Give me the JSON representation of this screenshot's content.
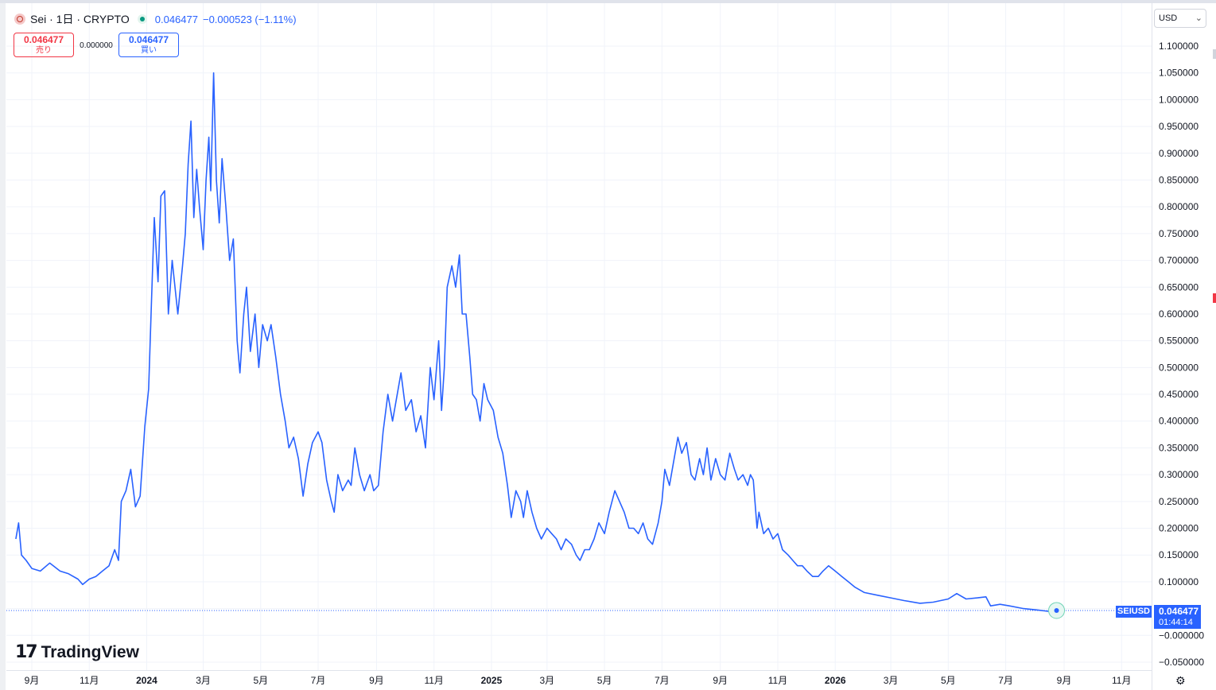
{
  "header": {
    "symbol_title": "Sei · 1日 · CRYPTO",
    "last_price": "0.046477",
    "change": "−0.000523 (−1.11%)"
  },
  "trade": {
    "sell_price": "0.046477",
    "sell_label": "売り",
    "spread": "0.000000",
    "buy_price": "0.046477",
    "buy_label": "買い"
  },
  "currency": {
    "selected": "USD"
  },
  "branding": {
    "logo_text": "TradingView"
  },
  "price_tag": {
    "symbol": "SEIUSD",
    "price": "0.046477",
    "countdown": "01:44:14"
  },
  "colors": {
    "line": "#2962ff",
    "grid": "#f0f3fa",
    "sell": "#f23645",
    "buy": "#2962ff"
  },
  "chart_data": {
    "type": "line",
    "series": [
      {
        "points": [
          [
            "2023-08-15",
            0.18
          ],
          [
            "2023-08-18",
            0.21
          ],
          [
            "2023-08-21",
            0.15
          ],
          [
            "2023-08-26",
            0.14
          ],
          [
            "2023-09-01",
            0.125
          ],
          [
            "2023-09-10",
            0.12
          ],
          [
            "2023-09-20",
            0.135
          ],
          [
            "2023-10-01",
            0.12
          ],
          [
            "2023-10-10",
            0.115
          ],
          [
            "2023-10-20",
            0.105
          ],
          [
            "2023-10-25",
            0.095
          ],
          [
            "2023-11-01",
            0.105
          ],
          [
            "2023-11-08",
            0.11
          ],
          [
            "2023-11-15",
            0.12
          ],
          [
            "2023-11-22",
            0.13
          ],
          [
            "2023-11-28",
            0.16
          ],
          [
            "2023-12-02",
            0.14
          ],
          [
            "2023-12-05",
            0.25
          ],
          [
            "2023-12-10",
            0.27
          ],
          [
            "2023-12-15",
            0.31
          ],
          [
            "2023-12-20",
            0.24
          ],
          [
            "2023-12-25",
            0.26
          ],
          [
            "2023-12-30",
            0.39
          ],
          [
            "2024-01-03",
            0.46
          ],
          [
            "2024-01-06",
            0.62
          ],
          [
            "2024-01-09",
            0.78
          ],
          [
            "2024-01-13",
            0.66
          ],
          [
            "2024-01-16",
            0.82
          ],
          [
            "2024-01-20",
            0.83
          ],
          [
            "2024-01-24",
            0.6
          ],
          [
            "2024-01-28",
            0.7
          ],
          [
            "2024-02-03",
            0.6
          ],
          [
            "2024-02-08",
            0.69
          ],
          [
            "2024-02-11",
            0.75
          ],
          [
            "2024-02-14",
            0.88
          ],
          [
            "2024-02-17",
            0.96
          ],
          [
            "2024-02-20",
            0.78
          ],
          [
            "2024-02-23",
            0.87
          ],
          [
            "2024-02-26",
            0.8
          ],
          [
            "2024-03-01",
            0.72
          ],
          [
            "2024-03-04",
            0.85
          ],
          [
            "2024-03-07",
            0.93
          ],
          [
            "2024-03-09",
            0.83
          ],
          [
            "2024-03-12",
            1.05
          ],
          [
            "2024-03-15",
            0.85
          ],
          [
            "2024-03-18",
            0.77
          ],
          [
            "2024-03-21",
            0.89
          ],
          [
            "2024-03-25",
            0.8
          ],
          [
            "2024-03-29",
            0.7
          ],
          [
            "2024-04-02",
            0.74
          ],
          [
            "2024-04-06",
            0.55
          ],
          [
            "2024-04-09",
            0.49
          ],
          [
            "2024-04-13",
            0.6
          ],
          [
            "2024-04-16",
            0.65
          ],
          [
            "2024-04-20",
            0.53
          ],
          [
            "2024-04-25",
            0.6
          ],
          [
            "2024-04-29",
            0.5
          ],
          [
            "2024-05-03",
            0.58
          ],
          [
            "2024-05-08",
            0.55
          ],
          [
            "2024-05-12",
            0.58
          ],
          [
            "2024-05-17",
            0.52
          ],
          [
            "2024-05-22",
            0.45
          ],
          [
            "2024-05-27",
            0.4
          ],
          [
            "2024-05-31",
            0.35
          ],
          [
            "2024-06-05",
            0.37
          ],
          [
            "2024-06-10",
            0.33
          ],
          [
            "2024-06-15",
            0.26
          ],
          [
            "2024-06-20",
            0.32
          ],
          [
            "2024-06-25",
            0.36
          ],
          [
            "2024-07-01",
            0.38
          ],
          [
            "2024-07-05",
            0.36
          ],
          [
            "2024-07-10",
            0.29
          ],
          [
            "2024-07-15",
            0.25
          ],
          [
            "2024-07-18",
            0.23
          ],
          [
            "2024-07-22",
            0.3
          ],
          [
            "2024-07-27",
            0.27
          ],
          [
            "2024-08-02",
            0.29
          ],
          [
            "2024-08-05",
            0.28
          ],
          [
            "2024-08-09",
            0.35
          ],
          [
            "2024-08-14",
            0.3
          ],
          [
            "2024-08-19",
            0.27
          ],
          [
            "2024-08-25",
            0.3
          ],
          [
            "2024-08-29",
            0.27
          ],
          [
            "2024-09-03",
            0.28
          ],
          [
            "2024-09-08",
            0.38
          ],
          [
            "2024-09-13",
            0.45
          ],
          [
            "2024-09-18",
            0.4
          ],
          [
            "2024-09-22",
            0.44
          ],
          [
            "2024-09-27",
            0.49
          ],
          [
            "2024-10-02",
            0.42
          ],
          [
            "2024-10-08",
            0.44
          ],
          [
            "2024-10-13",
            0.38
          ],
          [
            "2024-10-18",
            0.41
          ],
          [
            "2024-10-23",
            0.35
          ],
          [
            "2024-10-28",
            0.5
          ],
          [
            "2024-11-01",
            0.44
          ],
          [
            "2024-11-06",
            0.55
          ],
          [
            "2024-11-09",
            0.42
          ],
          [
            "2024-11-12",
            0.5
          ],
          [
            "2024-11-15",
            0.65
          ],
          [
            "2024-11-20",
            0.69
          ],
          [
            "2024-11-24",
            0.65
          ],
          [
            "2024-11-28",
            0.71
          ],
          [
            "2024-12-01",
            0.6
          ],
          [
            "2024-12-05",
            0.6
          ],
          [
            "2024-12-09",
            0.52
          ],
          [
            "2024-12-12",
            0.45
          ],
          [
            "2024-12-16",
            0.44
          ],
          [
            "2024-12-20",
            0.4
          ],
          [
            "2024-12-24",
            0.47
          ],
          [
            "2024-12-28",
            0.44
          ],
          [
            "2025-01-03",
            0.42
          ],
          [
            "2025-01-08",
            0.37
          ],
          [
            "2025-01-13",
            0.34
          ],
          [
            "2025-01-18",
            0.28
          ],
          [
            "2025-01-22",
            0.22
          ],
          [
            "2025-01-27",
            0.27
          ],
          [
            "2025-02-01",
            0.25
          ],
          [
            "2025-02-04",
            0.22
          ],
          [
            "2025-02-08",
            0.27
          ],
          [
            "2025-02-13",
            0.23
          ],
          [
            "2025-02-18",
            0.2
          ],
          [
            "2025-02-23",
            0.18
          ],
          [
            "2025-03-01",
            0.2
          ],
          [
            "2025-03-06",
            0.19
          ],
          [
            "2025-03-11",
            0.18
          ],
          [
            "2025-03-16",
            0.16
          ],
          [
            "2025-03-21",
            0.18
          ],
          [
            "2025-03-27",
            0.17
          ],
          [
            "2025-04-01",
            0.15
          ],
          [
            "2025-04-05",
            0.14
          ],
          [
            "2025-04-10",
            0.16
          ],
          [
            "2025-04-15",
            0.16
          ],
          [
            "2025-04-20",
            0.18
          ],
          [
            "2025-04-25",
            0.21
          ],
          [
            "2025-05-01",
            0.19
          ],
          [
            "2025-05-06",
            0.23
          ],
          [
            "2025-05-12",
            0.27
          ],
          [
            "2025-05-17",
            0.25
          ],
          [
            "2025-05-22",
            0.23
          ],
          [
            "2025-05-27",
            0.2
          ],
          [
            "2025-06-01",
            0.2
          ],
          [
            "2025-06-06",
            0.19
          ],
          [
            "2025-06-11",
            0.21
          ],
          [
            "2025-06-16",
            0.18
          ],
          [
            "2025-06-21",
            0.17
          ],
          [
            "2025-06-27",
            0.21
          ],
          [
            "2025-07-01",
            0.25
          ],
          [
            "2025-07-04",
            0.31
          ],
          [
            "2025-07-09",
            0.28
          ],
          [
            "2025-07-13",
            0.32
          ],
          [
            "2025-07-18",
            0.37
          ],
          [
            "2025-07-22",
            0.34
          ],
          [
            "2025-07-27",
            0.36
          ],
          [
            "2025-08-01",
            0.3
          ],
          [
            "2025-08-05",
            0.29
          ],
          [
            "2025-08-10",
            0.33
          ],
          [
            "2025-08-14",
            0.3
          ],
          [
            "2025-08-18",
            0.35
          ],
          [
            "2025-08-22",
            0.29
          ],
          [
            "2025-08-27",
            0.33
          ],
          [
            "2025-09-01",
            0.3
          ],
          [
            "2025-09-06",
            0.29
          ],
          [
            "2025-09-11",
            0.34
          ],
          [
            "2025-09-16",
            0.31
          ],
          [
            "2025-09-20",
            0.29
          ],
          [
            "2025-09-25",
            0.3
          ],
          [
            "2025-09-30",
            0.28
          ],
          [
            "2025-10-03",
            0.3
          ],
          [
            "2025-10-06",
            0.29
          ],
          [
            "2025-10-10",
            0.2
          ],
          [
            "2025-10-12",
            0.23
          ],
          [
            "2025-10-17",
            0.19
          ],
          [
            "2025-10-22",
            0.2
          ],
          [
            "2025-10-27",
            0.18
          ],
          [
            "2025-11-01",
            0.19
          ],
          [
            "2025-11-06",
            0.16
          ],
          [
            "2025-11-12",
            0.15
          ],
          [
            "2025-11-17",
            0.14
          ],
          [
            "2025-11-22",
            0.13
          ],
          [
            "2025-11-27",
            0.13
          ],
          [
            "2025-12-02",
            0.12
          ],
          [
            "2025-12-08",
            0.11
          ],
          [
            "2025-12-14",
            0.11
          ],
          [
            "2025-12-19",
            0.12
          ],
          [
            "2025-12-25",
            0.13
          ],
          [
            "2026-01-01",
            0.12
          ],
          [
            "2026-01-08",
            0.11
          ],
          [
            "2026-01-15",
            0.1
          ],
          [
            "2026-01-22",
            0.09
          ],
          [
            "2026-02-01",
            0.08
          ],
          [
            "2026-02-15",
            0.075
          ],
          [
            "2026-03-01",
            0.07
          ],
          [
            "2026-03-15",
            0.065
          ],
          [
            "2026-04-01",
            0.06
          ],
          [
            "2026-04-15",
            0.062
          ],
          [
            "2026-05-01",
            0.068
          ],
          [
            "2026-05-10",
            0.078
          ],
          [
            "2026-05-20",
            0.068
          ],
          [
            "2026-06-01",
            0.07
          ],
          [
            "2026-06-10",
            0.072
          ],
          [
            "2026-06-15",
            0.055
          ],
          [
            "2026-06-25",
            0.058
          ],
          [
            "2026-07-05",
            0.055
          ],
          [
            "2026-07-20",
            0.05
          ],
          [
            "2026-08-05",
            0.047
          ],
          [
            "2026-08-15",
            0.045
          ],
          [
            "2026-08-20",
            0.0475
          ],
          [
            "2026-08-24",
            0.046477
          ]
        ]
      }
    ],
    "y_ticks": [
      "1.100000",
      "1.050000",
      "1.000000",
      "0.950000",
      "0.900000",
      "0.850000",
      "0.800000",
      "0.750000",
      "0.700000",
      "0.650000",
      "0.600000",
      "0.550000",
      "0.500000",
      "0.450000",
      "0.400000",
      "0.350000",
      "0.300000",
      "0.250000",
      "0.200000",
      "0.150000",
      "0.100000",
      "0.050000",
      "−0.000000",
      "−0.050000"
    ],
    "x_ticks": [
      "9月",
      "11月",
      "2024",
      "3月",
      "5月",
      "7月",
      "9月",
      "11月",
      "2025",
      "3月",
      "5月",
      "7月",
      "9月",
      "11月",
      "2026",
      "3月",
      "5月",
      "7月",
      "9月",
      "11月"
    ],
    "current_value": 0.046477,
    "grid": true
  }
}
